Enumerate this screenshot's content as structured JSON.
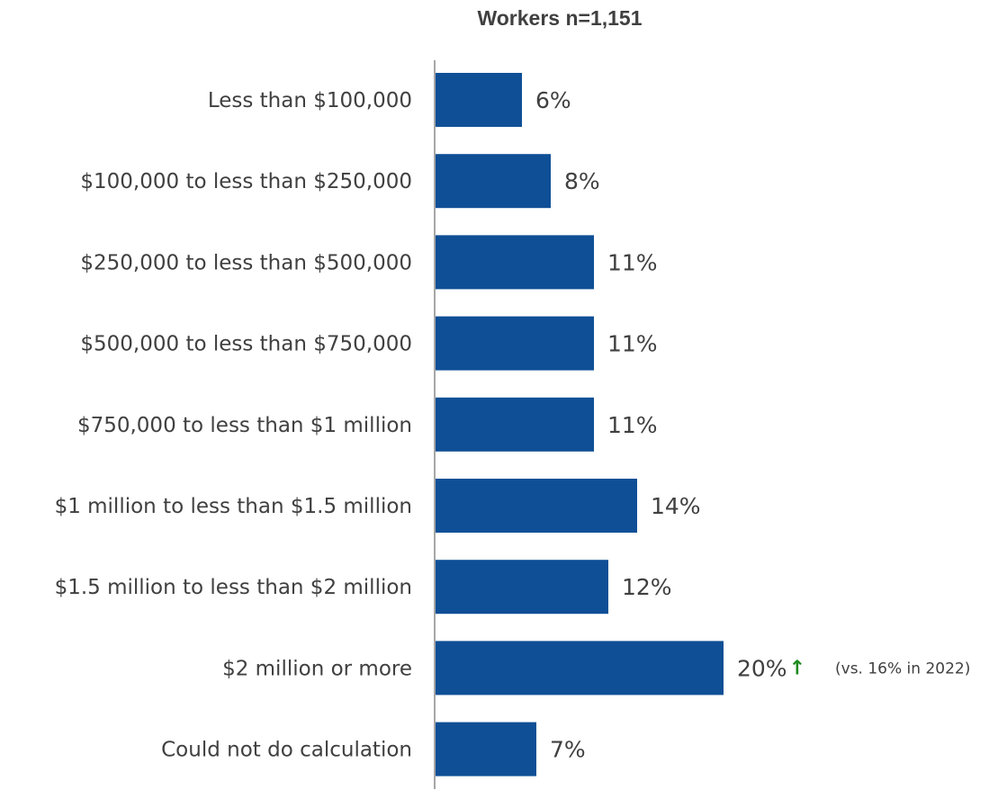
{
  "chart_data": {
    "type": "bar",
    "orientation": "horizontal",
    "title": "Workers n=1,151",
    "categories": [
      "Less than $100,000",
      "$100,000 to less than $250,000",
      "$250,000 to less than $500,000",
      "$500,000 to less than $750,000",
      "$750,000 to less than $1 million",
      "$1 million to less than $1.5 million",
      "$1.5 million to less than $2 million",
      "$2 million or more",
      "Could not do calculation"
    ],
    "values": [
      6,
      8,
      11,
      11,
      11,
      14,
      12,
      20,
      7
    ],
    "value_labels": [
      "6%",
      "8%",
      "11%",
      "11%",
      "11%",
      "14%",
      "12%",
      "20%",
      "7%"
    ],
    "annotations": [
      {
        "category_index": 7,
        "arrow": "↑",
        "arrow_color": "#1e8a1e",
        "text": "(vs. 16% in 2022)"
      }
    ],
    "bar_color": "#0f4f96",
    "xlim": [
      0,
      20
    ],
    "grid": false,
    "legend": "none"
  }
}
